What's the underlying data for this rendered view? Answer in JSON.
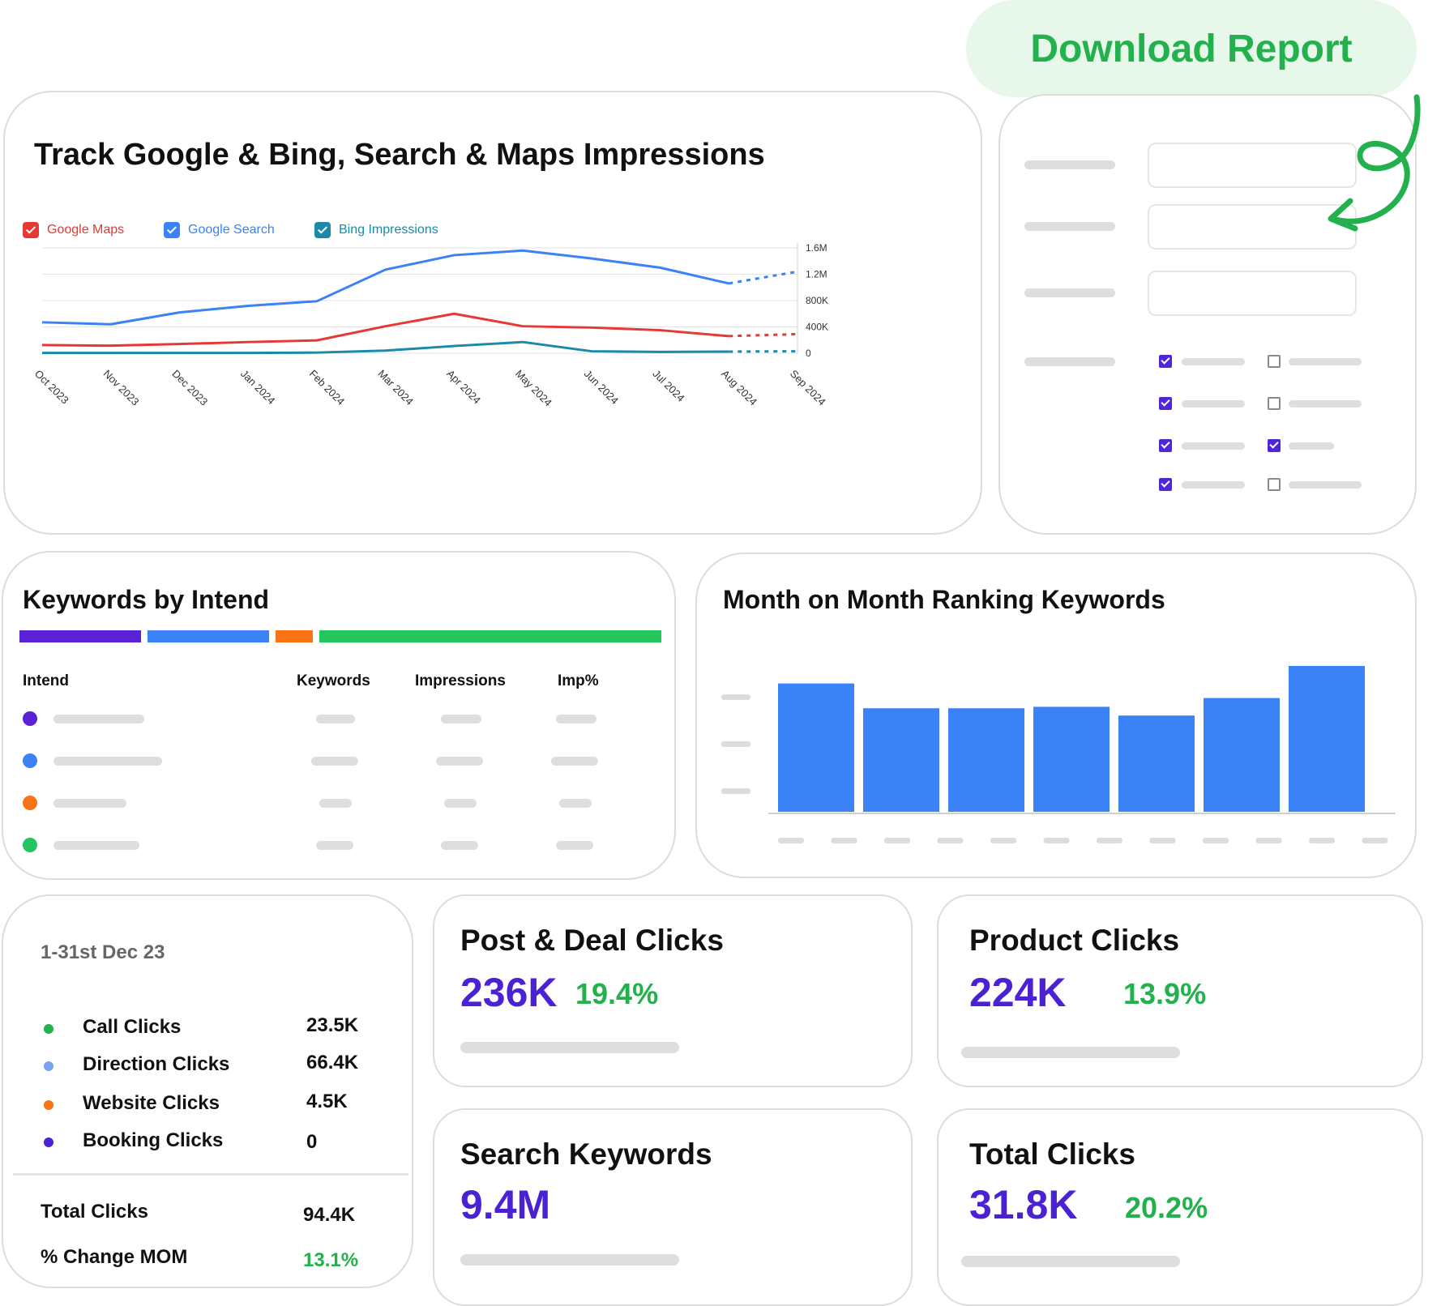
{
  "download_button": {
    "label": "Download Report",
    "color": "#22b14c"
  },
  "impressions_card": {
    "title": "Track Google & Bing, Search & Maps Impressions",
    "legend": [
      {
        "label": "Google Maps",
        "color": "#e53935"
      },
      {
        "label": "Google Search",
        "color": "#3b82f6"
      },
      {
        "label": "Bing Impressions",
        "color": "#1a8aa8"
      }
    ]
  },
  "chart_data": {
    "type": "line",
    "title": "Track Google & Bing, Search & Maps Impressions",
    "categories": [
      "Oct 2023",
      "Nov 2023",
      "Dec 2023",
      "Jan 2024",
      "Feb 2024",
      "Mar 2024",
      "Apr 2024",
      "May 2024",
      "Jun 2024",
      "Jul 2024",
      "Aug 2024",
      "Sep 2024"
    ],
    "y_ticks": [
      "1.6M",
      "1.2M",
      "800K",
      "400K",
      "0"
    ],
    "ylim": [
      0,
      1600000
    ],
    "series": [
      {
        "name": "Google Search",
        "color": "#3b82f6",
        "values": [
          470000,
          440000,
          620000,
          720000,
          790000,
          1270000,
          1490000,
          1560000,
          1440000,
          1300000,
          1060000,
          1240000
        ],
        "projected_from_index": 10
      },
      {
        "name": "Google Maps",
        "color": "#e53935",
        "values": [
          125000,
          115000,
          140000,
          170000,
          195000,
          410000,
          600000,
          410000,
          390000,
          350000,
          260000,
          290000
        ],
        "projected_from_index": 10
      },
      {
        "name": "Bing Impressions",
        "color": "#1a8aa8",
        "values": [
          5000,
          5000,
          5000,
          5000,
          10000,
          40000,
          110000,
          170000,
          30000,
          20000,
          25000,
          30000
        ],
        "projected_from_index": 10
      }
    ]
  },
  "keywords_intent": {
    "title": "Keywords by Intend",
    "headers": {
      "intend": "Intend",
      "keywords": "Keywords",
      "impressions": "Impressions",
      "imp_pct": "Imp%"
    },
    "segment_colors": [
      "#5b21d6",
      "#3b82f6",
      "#f97316",
      "#22c55e"
    ]
  },
  "mom_card": {
    "title": "Month on Month Ranking Keywords",
    "bar_color": "#3b82f6"
  },
  "summary_card": {
    "date": "1-31st Dec 23",
    "rows": [
      {
        "label": "Call Clicks",
        "value": "23.5K",
        "color": "#22b14c"
      },
      {
        "label": "Direction Clicks",
        "value": "66.4K",
        "color": "#7aa2f0"
      },
      {
        "label": "Website Clicks",
        "value": "4.5K",
        "color": "#f97316"
      },
      {
        "label": "Booking Clicks",
        "value": "0",
        "color": "#4a22d4"
      }
    ],
    "total_label": "Total Clicks",
    "total_value": "94.4K",
    "change_label": "% Change MOM",
    "change_value": "13.1%"
  },
  "stats": {
    "post_deal": {
      "title": "Post & Deal Clicks",
      "value": "236K",
      "pct": "19.4%"
    },
    "product": {
      "title": "Product Clicks",
      "value": "224K",
      "pct": "13.9%"
    },
    "search_keywords": {
      "title": "Search Keywords",
      "value": "9.4M"
    },
    "total_clicks": {
      "title": "Total Clicks",
      "value": "31.8K",
      "pct": "20.2%"
    }
  }
}
